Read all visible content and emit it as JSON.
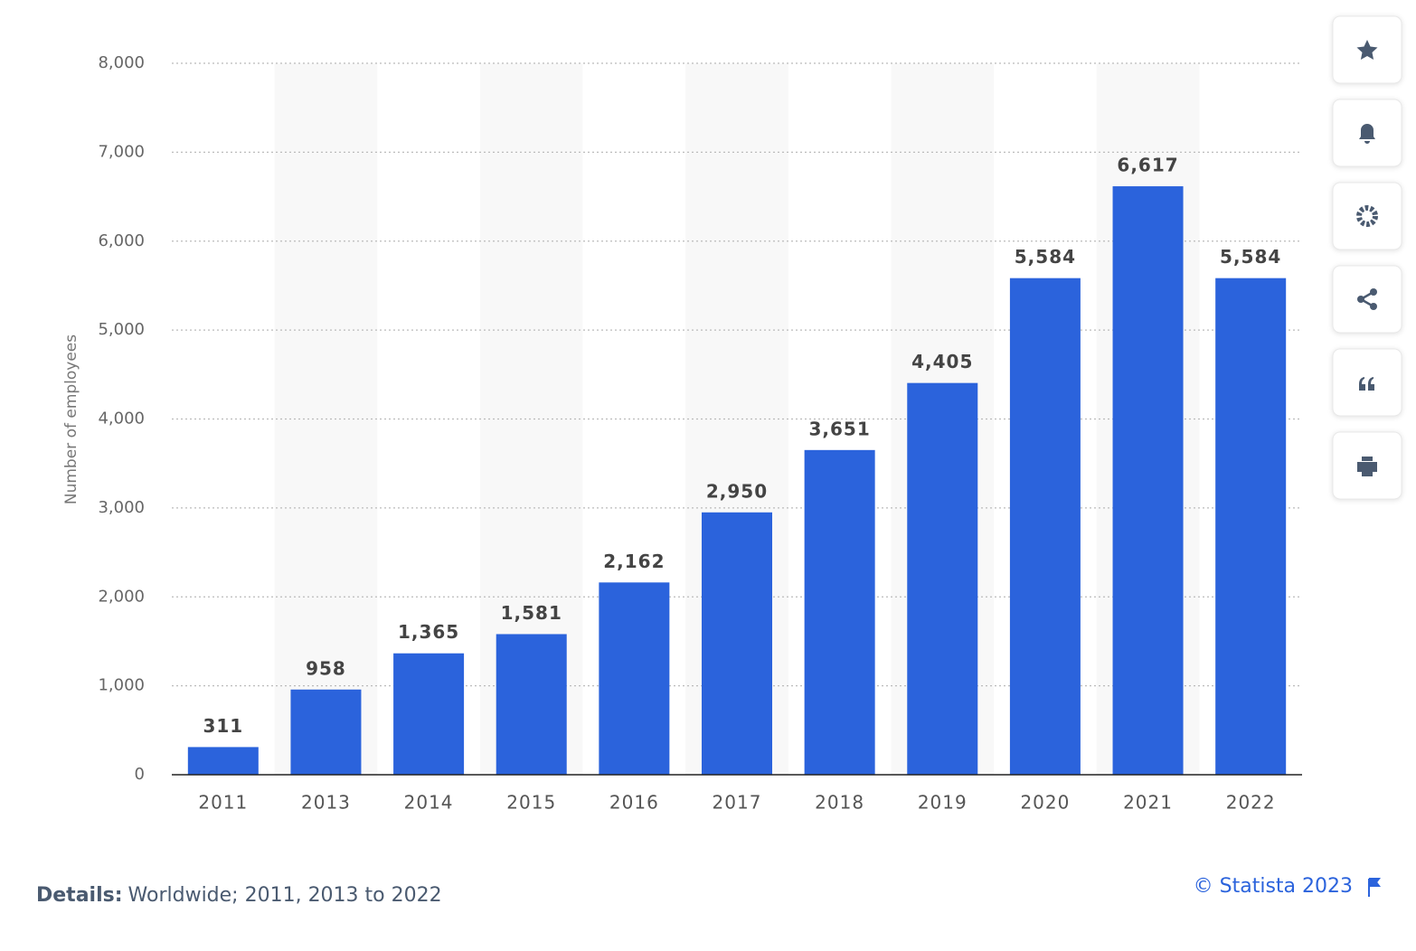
{
  "chart_data": {
    "type": "bar",
    "y_axis_label": "Number of employees",
    "categories": [
      "2011",
      "2013",
      "2014",
      "2015",
      "2016",
      "2017",
      "2018",
      "2019",
      "2020",
      "2021",
      "2022"
    ],
    "values": [
      311,
      958,
      1365,
      1581,
      2162,
      2950,
      3651,
      4405,
      5584,
      6617,
      5584
    ],
    "value_labels": [
      "311",
      "958",
      "1,365",
      "1,581",
      "2,162",
      "2,950",
      "3,651",
      "4,405",
      "5,584",
      "6,617",
      "5,584"
    ],
    "color": "#2b63dc",
    "ylim": [
      0,
      8000
    ],
    "yticks": [
      0,
      {
        "value": 1000,
        "label": "1,000"
      },
      {
        "value": 2000,
        "label": "2,000"
      },
      {
        "value": 3000,
        "label": "3,000"
      },
      {
        "value": 4000,
        "label": "4,000"
      },
      {
        "value": 5000,
        "label": "5,000"
      },
      {
        "value": 6000,
        "label": "6,000"
      },
      {
        "value": 7000,
        "label": "7,000"
      },
      {
        "value": 8000,
        "label": "8,000"
      }
    ],
    "grid": true
  },
  "footer": {
    "details_label": "Details:",
    "details": "Worldwide; 2011, 2013 to 2022",
    "source": "© Statista 2023"
  }
}
